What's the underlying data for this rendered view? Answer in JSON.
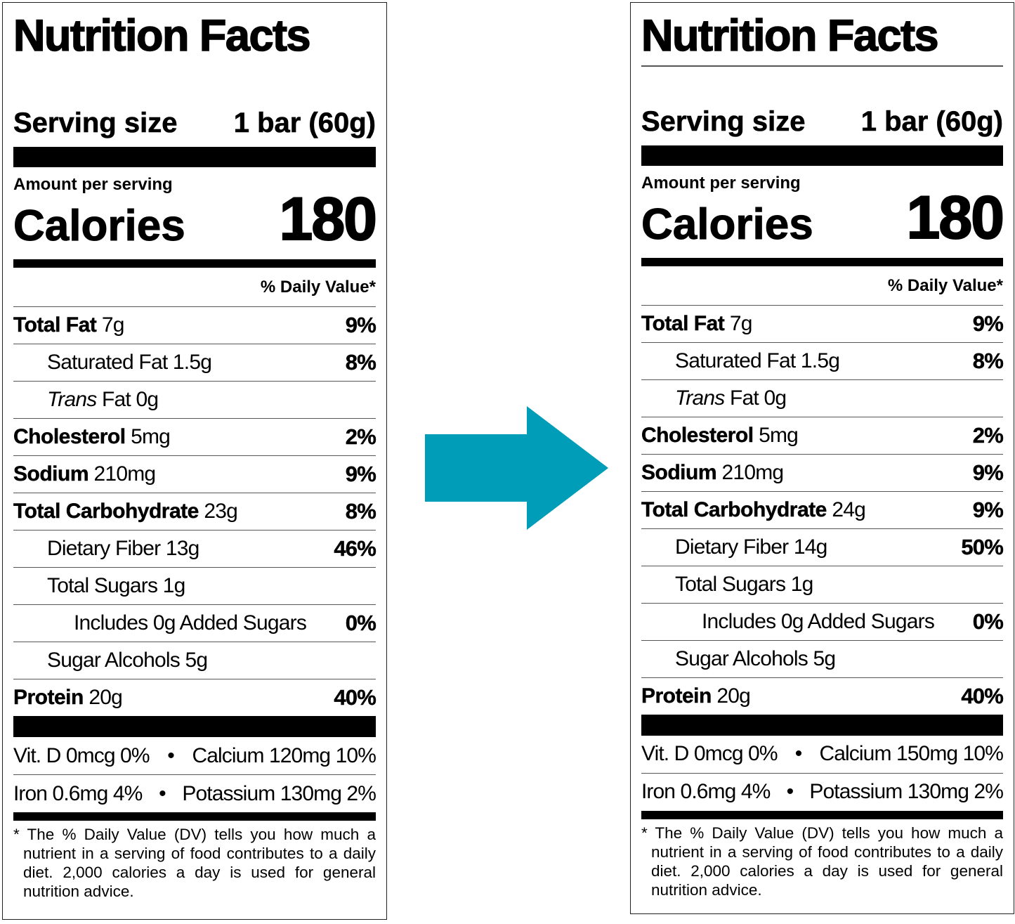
{
  "labels": [
    {
      "title": "Nutrition Facts",
      "serving_label": "Serving size",
      "serving_value": "1 bar (60g)",
      "amount_per_serving": "Amount per serving",
      "calories_label": "Calories",
      "calories_value": "180",
      "dv_header": "% Daily Value*",
      "rows": [
        {
          "name": "Total Fat",
          "amount": "7g",
          "dv": "9%",
          "bold": true,
          "indent": 0
        },
        {
          "name": "Saturated Fat",
          "amount": "1.5g",
          "dv": "8%",
          "bold": false,
          "indent": 1
        },
        {
          "italic": "Trans",
          "name": "Fat",
          "amount": "0g",
          "dv": "",
          "bold": false,
          "indent": 1
        },
        {
          "name": "Cholesterol",
          "amount": "5mg",
          "dv": "2%",
          "bold": true,
          "indent": 0
        },
        {
          "name": "Sodium",
          "amount": "210mg",
          "dv": "9%",
          "bold": true,
          "indent": 0
        },
        {
          "name": "Total Carbohydrate",
          "amount": "23g",
          "dv": "8%",
          "bold": true,
          "indent": 0
        },
        {
          "name": "Dietary Fiber",
          "amount": "13g",
          "dv": "46%",
          "bold": false,
          "indent": 1
        },
        {
          "name": "Total Sugars",
          "amount": "1g",
          "dv": "",
          "bold": false,
          "indent": 1
        },
        {
          "name": "Includes 0g Added Sugars",
          "amount": "",
          "dv": "0%",
          "bold": false,
          "indent": 2
        },
        {
          "name": "Sugar Alcohols",
          "amount": "5g",
          "dv": "",
          "bold": false,
          "indent": 1
        },
        {
          "name": "Protein",
          "amount": "20g",
          "dv": "40%",
          "bold": true,
          "indent": 0
        }
      ],
      "vitamins": [
        {
          "left": "Vit. D 0mcg 0%",
          "bullet": "•",
          "right": "Calcium 120mg 10%"
        },
        {
          "left": "Iron 0.6mg 4%",
          "bullet": "•",
          "right": "Potassium 130mg 2%"
        }
      ],
      "footnote": "* The % Daily Value (DV) tells you how much a nutrient in a serving of food contributes to a daily diet. 2,000 calories a day is used for general nutrition advice."
    },
    {
      "title": "Nutrition Facts",
      "serving_label": "Serving size",
      "serving_value": "1 bar (60g)",
      "amount_per_serving": "Amount per serving",
      "calories_label": "Calories",
      "calories_value": "180",
      "dv_header": "% Daily Value*",
      "rows": [
        {
          "name": "Total Fat",
          "amount": "7g",
          "dv": "9%",
          "bold": true,
          "indent": 0
        },
        {
          "name": "Saturated Fat",
          "amount": "1.5g",
          "dv": "8%",
          "bold": false,
          "indent": 1
        },
        {
          "italic": "Trans",
          "name": "Fat",
          "amount": "0g",
          "dv": "",
          "bold": false,
          "indent": 1
        },
        {
          "name": "Cholesterol",
          "amount": "5mg",
          "dv": "2%",
          "bold": true,
          "indent": 0
        },
        {
          "name": "Sodium",
          "amount": "210mg",
          "dv": "9%",
          "bold": true,
          "indent": 0
        },
        {
          "name": "Total Carbohydrate",
          "amount": "24g",
          "dv": "9%",
          "bold": true,
          "indent": 0
        },
        {
          "name": "Dietary Fiber",
          "amount": "14g",
          "dv": "50%",
          "bold": false,
          "indent": 1
        },
        {
          "name": "Total Sugars",
          "amount": "1g",
          "dv": "",
          "bold": false,
          "indent": 1
        },
        {
          "name": "Includes 0g Added Sugars",
          "amount": "",
          "dv": "0%",
          "bold": false,
          "indent": 2
        },
        {
          "name": "Sugar Alcohols",
          "amount": "5g",
          "dv": "",
          "bold": false,
          "indent": 1
        },
        {
          "name": "Protein",
          "amount": "20g",
          "dv": "40%",
          "bold": true,
          "indent": 0
        }
      ],
      "vitamins": [
        {
          "left": "Vit. D 0mcg 0%",
          "bullet": "•",
          "right": "Calcium 150mg 10%"
        },
        {
          "left": "Iron 0.6mg 4%",
          "bullet": "•",
          "right": "Potassium 130mg 2%"
        }
      ],
      "footnote": "* The % Daily Value (DV) tells you how much a nutrient in a serving of food contributes to a daily diet. 2,000 calories a day is used for general nutrition advice."
    }
  ],
  "arrow": {
    "icon": "arrow-right-icon",
    "color": "#009db8"
  }
}
